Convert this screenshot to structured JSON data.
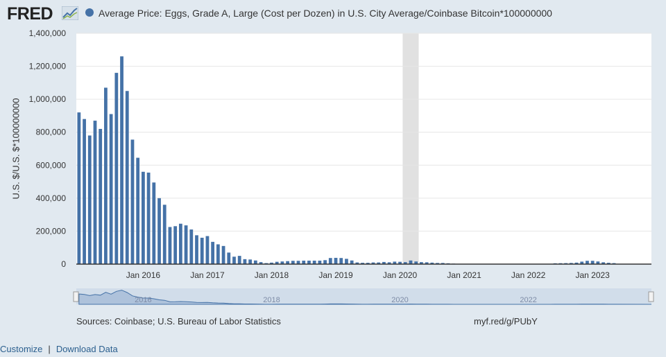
{
  "header": {
    "logo_text": "FRED",
    "logo_icon": "chart-line-icon",
    "series_title": "Average Price: Eggs, Grade A, Large (Cost per Dozen) in U.S. City Average/Coinbase Bitcoin*100000000",
    "series_color": "#4572a7"
  },
  "chart_data": {
    "type": "bar",
    "title": "",
    "xlabel": "",
    "ylabel": "U.S. $/U.S. $*100000000",
    "ylim": [
      0,
      1400000
    ],
    "y_ticks": [
      "0",
      "200,000",
      "400,000",
      "600,000",
      "800,000",
      "1,000,000",
      "1,200,000",
      "1,400,000"
    ],
    "x_ticks": [
      "Jan 2016",
      "Jan 2017",
      "Jan 2018",
      "Jan 2019",
      "Jan 2020",
      "Jan 2021",
      "Jan 2022",
      "Jan 2023"
    ],
    "navigator_labels": [
      "2016",
      "2018",
      "2020",
      "2022"
    ],
    "recession_shading": {
      "start": "2020-02",
      "end": "2020-04"
    },
    "bar_color": "#4572a7",
    "grid": true,
    "series": [
      {
        "values": [
          {
            "x": "2015-01",
            "y": 920000
          },
          {
            "x": "2015-02",
            "y": 880000
          },
          {
            "x": "2015-03",
            "y": 780000
          },
          {
            "x": "2015-04",
            "y": 870000
          },
          {
            "x": "2015-05",
            "y": 820000
          },
          {
            "x": "2015-06",
            "y": 1070000
          },
          {
            "x": "2015-07",
            "y": 910000
          },
          {
            "x": "2015-08",
            "y": 1160000
          },
          {
            "x": "2015-09",
            "y": 1260000
          },
          {
            "x": "2015-10",
            "y": 1050000
          },
          {
            "x": "2015-11",
            "y": 755000
          },
          {
            "x": "2015-12",
            "y": 645000
          },
          {
            "x": "2016-01",
            "y": 560000
          },
          {
            "x": "2016-02",
            "y": 555000
          },
          {
            "x": "2016-03",
            "y": 495000
          },
          {
            "x": "2016-04",
            "y": 400000
          },
          {
            "x": "2016-05",
            "y": 360000
          },
          {
            "x": "2016-06",
            "y": 225000
          },
          {
            "x": "2016-07",
            "y": 230000
          },
          {
            "x": "2016-08",
            "y": 245000
          },
          {
            "x": "2016-09",
            "y": 235000
          },
          {
            "x": "2016-10",
            "y": 210000
          },
          {
            "x": "2016-11",
            "y": 175000
          },
          {
            "x": "2016-12",
            "y": 160000
          },
          {
            "x": "2017-01",
            "y": 170000
          },
          {
            "x": "2017-02",
            "y": 135000
          },
          {
            "x": "2017-03",
            "y": 120000
          },
          {
            "x": "2017-04",
            "y": 110000
          },
          {
            "x": "2017-05",
            "y": 70000
          },
          {
            "x": "2017-06",
            "y": 45000
          },
          {
            "x": "2017-07",
            "y": 50000
          },
          {
            "x": "2017-08",
            "y": 30000
          },
          {
            "x": "2017-09",
            "y": 28000
          },
          {
            "x": "2017-10",
            "y": 22000
          },
          {
            "x": "2017-11",
            "y": 12000
          },
          {
            "x": "2017-12",
            "y": 6000
          },
          {
            "x": "2018-01",
            "y": 9000
          },
          {
            "x": "2018-02",
            "y": 14000
          },
          {
            "x": "2018-03",
            "y": 16000
          },
          {
            "x": "2018-04",
            "y": 18000
          },
          {
            "x": "2018-05",
            "y": 20000
          },
          {
            "x": "2018-06",
            "y": 20000
          },
          {
            "x": "2018-07",
            "y": 21000
          },
          {
            "x": "2018-08",
            "y": 21000
          },
          {
            "x": "2018-09",
            "y": 21000
          },
          {
            "x": "2018-10",
            "y": 21000
          },
          {
            "x": "2018-11",
            "y": 24000
          },
          {
            "x": "2018-12",
            "y": 37000
          },
          {
            "x": "2019-01",
            "y": 38000
          },
          {
            "x": "2019-02",
            "y": 37000
          },
          {
            "x": "2019-03",
            "y": 32000
          },
          {
            "x": "2019-04",
            "y": 22000
          },
          {
            "x": "2019-05",
            "y": 10000
          },
          {
            "x": "2019-06",
            "y": 8000
          },
          {
            "x": "2019-07",
            "y": 8000
          },
          {
            "x": "2019-08",
            "y": 10000
          },
          {
            "x": "2019-09",
            "y": 10000
          },
          {
            "x": "2019-10",
            "y": 13000
          },
          {
            "x": "2019-11",
            "y": 11000
          },
          {
            "x": "2019-12",
            "y": 15000
          },
          {
            "x": "2020-01",
            "y": 14000
          },
          {
            "x": "2020-02",
            "y": 12000
          },
          {
            "x": "2020-03",
            "y": 22000
          },
          {
            "x": "2020-04",
            "y": 16000
          },
          {
            "x": "2020-05",
            "y": 12000
          },
          {
            "x": "2020-06",
            "y": 11000
          },
          {
            "x": "2020-07",
            "y": 9000
          },
          {
            "x": "2020-08",
            "y": 7000
          },
          {
            "x": "2020-09",
            "y": 7000
          },
          {
            "x": "2020-10",
            "y": 5000
          },
          {
            "x": "2020-11",
            "y": 3000
          },
          {
            "x": "2020-12",
            "y": 2000
          },
          {
            "x": "2021-01",
            "y": 1500
          },
          {
            "x": "2021-02",
            "y": 1000
          },
          {
            "x": "2021-03",
            "y": 800
          },
          {
            "x": "2021-04",
            "y": 800
          },
          {
            "x": "2021-05",
            "y": 900
          },
          {
            "x": "2021-06",
            "y": 1000
          },
          {
            "x": "2021-07",
            "y": 1000
          },
          {
            "x": "2021-08",
            "y": 900
          },
          {
            "x": "2021-09",
            "y": 900
          },
          {
            "x": "2021-10",
            "y": 700
          },
          {
            "x": "2021-11",
            "y": 600
          },
          {
            "x": "2021-12",
            "y": 800
          },
          {
            "x": "2022-01",
            "y": 1000
          },
          {
            "x": "2022-02",
            "y": 1100
          },
          {
            "x": "2022-03",
            "y": 1100
          },
          {
            "x": "2022-04",
            "y": 1200
          },
          {
            "x": "2022-05",
            "y": 1800
          },
          {
            "x": "2022-06",
            "y": 5000
          },
          {
            "x": "2022-07",
            "y": 5500
          },
          {
            "x": "2022-08",
            "y": 6000
          },
          {
            "x": "2022-09",
            "y": 7000
          },
          {
            "x": "2022-10",
            "y": 9000
          },
          {
            "x": "2022-11",
            "y": 15000
          },
          {
            "x": "2022-12",
            "y": 20000
          },
          {
            "x": "2023-01",
            "y": 20000
          },
          {
            "x": "2023-02",
            "y": 16000
          },
          {
            "x": "2023-03",
            "y": 11000
          },
          {
            "x": "2023-04",
            "y": 8000
          },
          {
            "x": "2023-05",
            "y": 6000
          }
        ]
      }
    ]
  },
  "footer": {
    "sources": "Sources: Coinbase; U.S. Bureau of Labor Statistics",
    "short_url": "myf.red/g/PUbY",
    "customize": "Customize",
    "separator": "|",
    "download": "Download Data"
  }
}
